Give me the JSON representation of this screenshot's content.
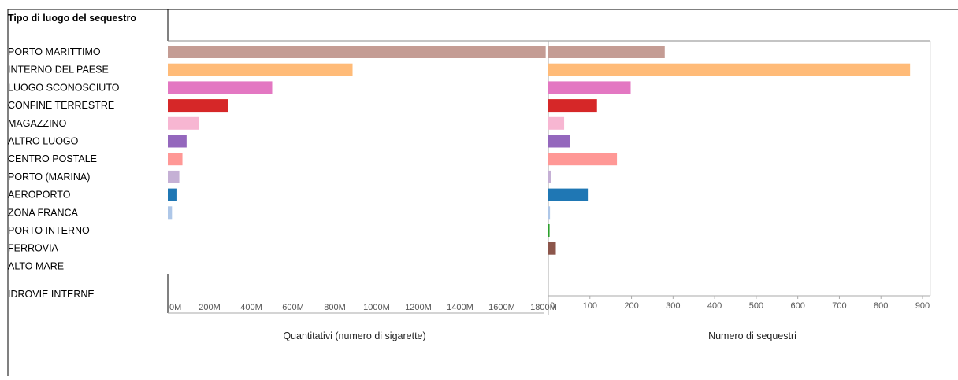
{
  "header": {
    "title": "Tipo di luogo del sequestro"
  },
  "chart_data": [
    {
      "type": "bar",
      "orientation": "horizontal",
      "xlabel": "Quantitativi (numero di sigarette)",
      "xlim": [
        0,
        1800
      ],
      "x_unit": "M",
      "ticks": [
        "0M",
        "200M",
        "400M",
        "600M",
        "800M",
        "1000M",
        "1200M",
        "1400M",
        "1600M",
        "1800M"
      ],
      "categories": [
        "PORTO MARITTIMO",
        "INTERNO DEL PAESE",
        "LUOGO SCONOSCIUTO",
        "CONFINE TERRESTRE",
        "MAGAZZINO",
        "ALTRO LUOGO",
        "CENTRO POSTALE",
        "PORTO (MARINA)",
        "AEROPORTO",
        "ZONA FRANCA",
        "PORTO INTERNO",
        "FERROVIA",
        "ALTO MARE",
        "IDROVIE INTERNE"
      ],
      "values": [
        1810,
        885,
        500,
        290,
        150,
        90,
        70,
        55,
        45,
        20,
        0,
        0,
        0,
        0
      ]
    },
    {
      "type": "bar",
      "orientation": "horizontal",
      "xlabel": "Numero di sequestri",
      "xlim": [
        0,
        900
      ],
      "ticks": [
        "0",
        "100",
        "200",
        "300",
        "400",
        "500",
        "600",
        "700",
        "800",
        "900"
      ],
      "categories": [
        "PORTO MARITTIMO",
        "INTERNO DEL PAESE",
        "LUOGO SCONOSCIUTO",
        "CONFINE TERRESTRE",
        "MAGAZZINO",
        "ALTRO LUOGO",
        "CENTRO POSTALE",
        "PORTO (MARINA)",
        "AEROPORTO",
        "ZONA FRANCA",
        "PORTO INTERNO",
        "FERROVIA",
        "ALTO MARE",
        "IDROVIE INTERNE"
      ],
      "values": [
        280,
        870,
        198,
        117,
        38,
        52,
        165,
        7,
        95,
        4,
        3,
        18,
        0,
        0
      ]
    }
  ],
  "colors": [
    "#c49c94",
    "#ffbb78",
    "#e377c2",
    "#d62728",
    "#f7b6d2",
    "#9467bd",
    "#ff9896",
    "#c5b0d5",
    "#1f77b4",
    "#aec7e8",
    "#2ca02c",
    "#8c564b",
    "#bcbd22",
    "#17becf"
  ]
}
